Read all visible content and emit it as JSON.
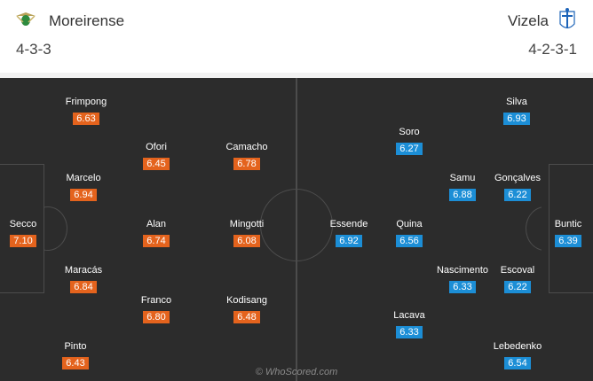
{
  "home": {
    "name": "Moreirense",
    "formation": "4-3-3",
    "logo_icon": "moreirense-crest-icon",
    "color": "#e4631d",
    "players": [
      {
        "name": "Secco",
        "rating": "7.10"
      },
      {
        "name": "Frimpong",
        "rating": "6.63"
      },
      {
        "name": "Marcelo",
        "rating": "6.94"
      },
      {
        "name": "Maracás",
        "rating": "6.84"
      },
      {
        "name": "Pinto",
        "rating": "6.43"
      },
      {
        "name": "Ofori",
        "rating": "6.45"
      },
      {
        "name": "Alan",
        "rating": "6.74"
      },
      {
        "name": "Franco",
        "rating": "6.80"
      },
      {
        "name": "Camacho",
        "rating": "6.78"
      },
      {
        "name": "Mingotti",
        "rating": "6.08"
      },
      {
        "name": "Kodisang",
        "rating": "6.48"
      }
    ]
  },
  "away": {
    "name": "Vizela",
    "formation": "4-2-3-1",
    "logo_icon": "vizela-crest-icon",
    "color": "#1c8ed6",
    "players": [
      {
        "name": "Buntic",
        "rating": "6.39"
      },
      {
        "name": "Silva",
        "rating": "6.93"
      },
      {
        "name": "Gonçalves",
        "rating": "6.22"
      },
      {
        "name": "Escoval",
        "rating": "6.22"
      },
      {
        "name": "Lebedenko",
        "rating": "6.54"
      },
      {
        "name": "Samu",
        "rating": "6.88"
      },
      {
        "name": "Nascimento",
        "rating": "6.33"
      },
      {
        "name": "Soro",
        "rating": "6.27"
      },
      {
        "name": "Quina",
        "rating": "6.56"
      },
      {
        "name": "Lacava",
        "rating": "6.33"
      },
      {
        "name": "Essende",
        "rating": "6.92"
      }
    ]
  },
  "watermark": "© WhoScored.com"
}
